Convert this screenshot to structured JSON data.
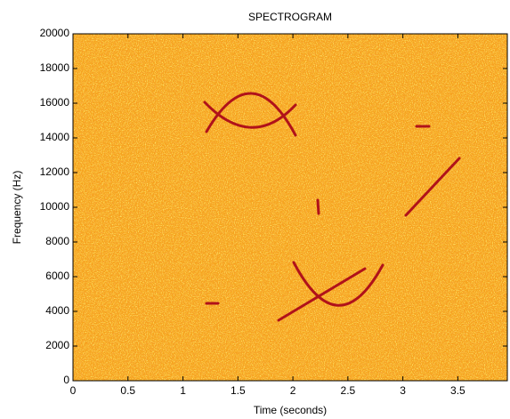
{
  "chart_data": {
    "type": "heatmap",
    "title": "SPECTROGRAM",
    "xlabel": "Time (seconds)",
    "ylabel": "Frequency (Hz)",
    "xlim": [
      0,
      3.95
    ],
    "xticks": [
      0,
      0.5,
      1,
      1.5,
      2,
      2.5,
      3,
      3.5
    ],
    "ylim": [
      0,
      20000
    ],
    "yticks": [
      0,
      2000,
      4000,
      6000,
      8000,
      10000,
      12000,
      14000,
      16000,
      18000,
      20000
    ]
  }
}
